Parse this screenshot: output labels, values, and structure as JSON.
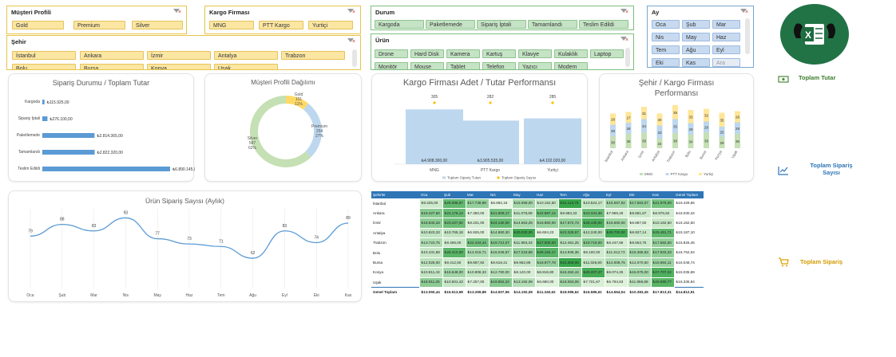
{
  "slicers": {
    "musteri": {
      "title": "Müşteri Profili",
      "items": [
        "Gold",
        "Premium",
        "Silver"
      ]
    },
    "kargo": {
      "title": "Kargo Firması",
      "items": [
        "MNG",
        "PTT Kargo",
        "Yurtiçi"
      ]
    },
    "sehir": {
      "title": "Şehir",
      "items": [
        "İstanbul",
        "Ankara",
        "İzmir",
        "Antalya",
        "Trabzon",
        "Bolu",
        "Bursa",
        "Konya",
        "Uşak"
      ]
    },
    "durum": {
      "title": "Durum",
      "items": [
        "Kargoda",
        "Paketlemede",
        "Sipariş İptali",
        "Tamamlandı",
        "Teslim Edildi"
      ]
    },
    "urun": {
      "title": "Ürün",
      "items": [
        "Drone",
        "Hard Disk",
        "Kamera",
        "Kartuş",
        "Klavye",
        "Kulaklık",
        "Laptop",
        "Monitör",
        "Mouse",
        "Tablet",
        "Telefon",
        "Yazıcı",
        "Modem"
      ]
    },
    "ay": {
      "title": "Ay",
      "items": [
        "Oca",
        "Şub",
        "Mar",
        "Nis",
        "May",
        "Haz",
        "Tem",
        "Ağu",
        "Eyl",
        "Eki",
        "Kas",
        "Ara"
      ]
    }
  },
  "nav": {
    "toplam_tutar": "Toplam Tutar",
    "toplam_siparis_sayisi": "Toplam Sipariş Sayısı",
    "toplam_siparis": "Toplam Sipariş",
    "icons": [
      "money-icon",
      "line-chart-icon",
      "cart-icon"
    ]
  },
  "chart_data": [
    {
      "id": "siparis-durumu",
      "type": "bar",
      "title": "Sipariş Durumu / Toplam Tutar",
      "categories": [
        "Kargoda",
        "Sipariş İptali",
        "Paketlemede",
        "Tamamlandı",
        "Teslim Edildi"
      ],
      "values": [
        115925,
        276100,
        2814365,
        2822320,
        6890145
      ],
      "labels": [
        "₺115.925,00",
        "₺276.100,00",
        "₺2.814.365,00",
        "₺2.822.320,00",
        "₺6.890.145,00"
      ],
      "color": "#5b9bd5"
    },
    {
      "id": "musteri-profili",
      "type": "pie",
      "title": "Müşteri Profili Dağılımı",
      "slices": [
        {
          "name": "Gold",
          "value": 101,
          "pct": "11%",
          "color": "#ffd966"
        },
        {
          "name": "Premium",
          "value": 254,
          "pct": "27%",
          "color": "#bdd7ee"
        },
        {
          "name": "Silver",
          "value": 587,
          "pct": "62%",
          "color": "#c5e0b4"
        }
      ]
    },
    {
      "id": "kargo-performans",
      "type": "bar",
      "title": "Kargo Firması Adet / Tutar Performansı",
      "categories": [
        "MNG",
        "PTT Kargo",
        "Yurtiçi"
      ],
      "values": [
        4908300,
        3905535,
        4102020
      ],
      "value_labels": [
        "₺4.908.300,00",
        "₺3.905.535,00",
        "₺4.102.020,00"
      ],
      "counts": [
        305,
        282,
        285
      ],
      "legend": [
        "Toplam Sipariş Tutarı",
        "Toplam Sipariş Sayısı"
      ],
      "colors": [
        "#bdd7ee",
        "#ffc000"
      ]
    },
    {
      "id": "sehir-kargo",
      "type": "bar",
      "title": "Şehir / Kargo Firması Performansı",
      "categories": [
        "İstanbul",
        "Ankara",
        "İzmir",
        "Antalya",
        "Trabzon",
        "Bolu",
        "Bursa",
        "Konya",
        "Uşak"
      ],
      "series": [
        {
          "name": "MNG",
          "values": [
            30,
            36,
            39,
            24,
            38,
            34,
            39,
            29,
            36
          ],
          "color": "#c5e0b4"
        },
        {
          "name": "PTT Kargo",
          "values": [
            29,
            28,
            34,
            33,
            35,
            29,
            28,
            25,
            29
          ],
          "color": "#bdd7ee"
        },
        {
          "name": "Yurtiçi",
          "values": [
            28,
            27,
            31,
            30,
            35,
            33,
            32,
            35,
            28
          ],
          "color": "#ffe699"
        }
      ]
    },
    {
      "id": "urun-siparis",
      "type": "line",
      "title": "Ürün Sipariş Sayısı (Aylık)",
      "categories": [
        "Oca",
        "Şub",
        "Mar",
        "Nis",
        "May",
        "Haz",
        "Tem",
        "Ağu",
        "Eyl",
        "Eki",
        "Kas"
      ],
      "values": [
        79,
        88,
        83,
        93,
        77,
        73,
        71,
        62,
        83,
        74,
        89
      ],
      "ylim": [
        40,
        100
      ],
      "color": "#5b9bd5"
    },
    {
      "id": "sehir-ay-tablo",
      "type": "table",
      "header": [
        "Şehirler",
        "Oca",
        "Şub",
        "Mar",
        "Nis",
        "May",
        "Haz",
        "Tem",
        "Ağu",
        "Eyl",
        "Eki",
        "Kas",
        "Genel Toplam"
      ],
      "rows": [
        {
          "city": "İstanbul",
          "cells": [
            "₺9.225,00",
            "₺25.096,67",
            "₺17.738,89",
            "₺5.692,16",
            "₺15.058,00",
            "₺10.152,50",
            "₺31.113,75",
            "₺10.524,17",
            "₺15.597,92",
            "₺17.563,07",
            "₺21.976,00"
          ],
          "total": "₺16.429,55"
        },
        {
          "city": "Ankara",
          "cells": [
            "₺19.427,50",
            "₺24.176,13",
            "₺7.350,00",
            "₺21.909,17",
            "₺11.078,89",
            "₺22.887,14",
            "₺9.983,33",
            "₺23.344,38",
            "₺7.969,29",
            "₺9.681,67",
            "₺8.976,82"
          ],
          "total": "₺16.030,34"
        },
        {
          "city": "İzmir",
          "cells": [
            "₺18.633,33",
            "₺23.427,92",
            "₺8.231,00",
            "₺24.130,00",
            "₺14.663,25",
            "₺16.860,00",
            "₺17.672,73",
            "₺28.130,00",
            "₺15.560,00",
            "₺6.687,50",
            "₺10.162,50"
          ],
          "total": "₺16.162,50"
        },
        {
          "city": "Antalya",
          "cells": [
            "₺10.923,33",
            "₺10.765,18",
            "₺6.925,00",
            "₺14.880,30",
            "₺30.030,00",
            "₺6.604,23",
            "₺23.328,57",
            "₺12.240,00",
            "₺29.700,00",
            "₺9.927,14",
            "₺25.461,71"
          ],
          "total": "₺15.187,10"
        },
        {
          "city": "Trabzon",
          "cells": [
            "₺13.723,75",
            "₺9.406,00",
            "₺22.434,44",
            "₺19.721,07",
            "₺11.993,33",
            "₺27.500,00",
            "₺12.481,25",
            "₺19.719,00",
            "₺8.247,86",
            "₺9.563,75",
            "₺17.582,50"
          ],
          "total": "₺16.826,45"
        },
        {
          "city": "Bolu",
          "cells": [
            "₺10.431,88",
            "₺26.410,00",
            "₺14.015,71",
            "₺15.046,67",
            "₺17.218,86",
            "₺26.164,17",
            "₺13.936,36",
            "₺9.100,00",
            "₺11.612,73",
            "₺15.365,63",
            "₺17.933,33"
          ],
          "total": "₺16.752,04"
        },
        {
          "city": "Bursa",
          "cells": [
            "₺12.028,00",
            "₺9.412,50",
            "₺9.867,92",
            "₺8.618,21",
            "₺9.962,89",
            "₺16.977,78",
            "₺31.309,00",
            "₺11.026,80",
            "₺14.008,75",
            "₺12.070,50",
            "₺16.684,11"
          ],
          "total": "₺16.048,74"
        },
        {
          "city": "Konya",
          "cells": [
            "₺10.811,43",
            "₺15.648,00",
            "₺10.908,33",
            "₺12.780,00",
            "₺8.120,00",
            "₺8.816,80",
            "₺16.284,44",
            "₺29.207,27",
            "₺9.074,25",
            "₺15.075,00",
            "₺27.707,22"
          ],
          "total": "₺15.035,69"
        },
        {
          "city": "Uşak",
          "cells": [
            "₺18.911,25",
            "₺10.501,43",
            "₺7.257,00",
            "₺19.862,22",
            "₺13.192,08",
            "₺6.680,00",
            "₺16.063,06",
            "₺7.721,67",
            "₺6.794,63",
            "₺11.956,88",
            "₺26.590,77"
          ],
          "total": "₺16.335,84"
        }
      ],
      "total_row": {
        "label": "Genel Toplam",
        "cells": [
          "₺13.050,44",
          "₺16.513,98",
          "₺13.269,88",
          "₺14.507,96",
          "₺14.192,08",
          "₺11.340,62",
          "₺18.086,62",
          "₺16.586,61",
          "₺14.564,04",
          "₺10.383,45",
          "₺17.813,31"
        ],
        "total": "₺14.812,91"
      }
    }
  ]
}
